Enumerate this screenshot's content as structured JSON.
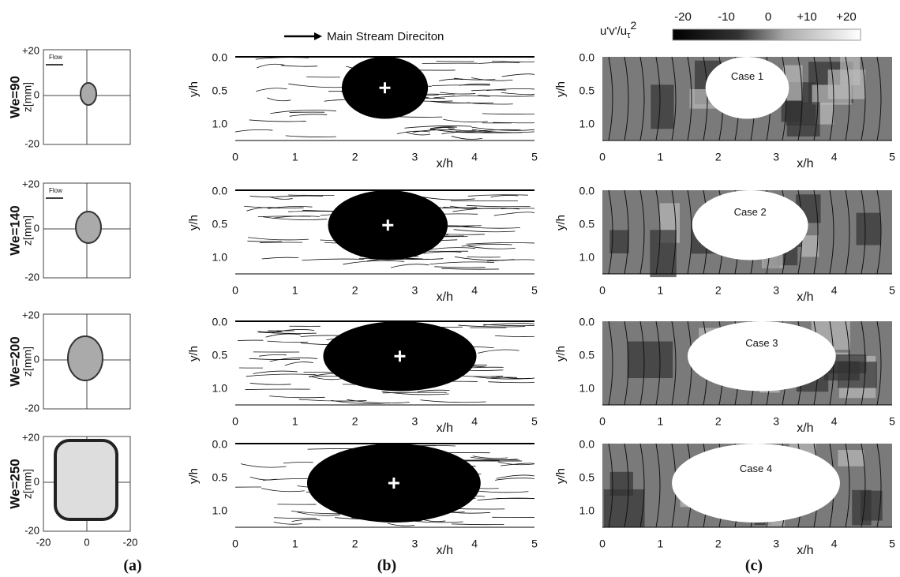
{
  "row_labels": [
    "We=90",
    "We=140",
    "We=200",
    "We=250"
  ],
  "panel_labels": [
    "(a)",
    "(b)",
    "(c)"
  ],
  "panel_a": {
    "y_label": "z[mm]",
    "y_ticks": [
      "+20",
      "0",
      "-20"
    ],
    "x_ticks": [
      "-20",
      "0",
      "-20"
    ],
    "flow_label": "Flow"
  },
  "panel_b": {
    "legend": "Main Stream Direciton",
    "y_label": "y/h",
    "x_label": "x/h",
    "y_ticks": [
      "0.0",
      "0.5",
      "1.0"
    ],
    "x_ticks": [
      "0",
      "1",
      "2",
      "3",
      "4",
      "5"
    ]
  },
  "panel_c": {
    "colorbar_label": {
      "base": "u'v'/u",
      "sub": "τ",
      "sup": "2"
    },
    "colorbar_ticks": [
      "-20",
      "-10",
      "0",
      "+10",
      "+20"
    ],
    "y_label": "y/h",
    "x_label": "x/h",
    "y_ticks": [
      "0.0",
      "0.5",
      "1.0"
    ],
    "x_ticks": [
      "0",
      "1",
      "2",
      "3",
      "4",
      "5"
    ],
    "case_labels": [
      "Case 1",
      "Case 2",
      "Case 3",
      "Case 4"
    ]
  }
}
